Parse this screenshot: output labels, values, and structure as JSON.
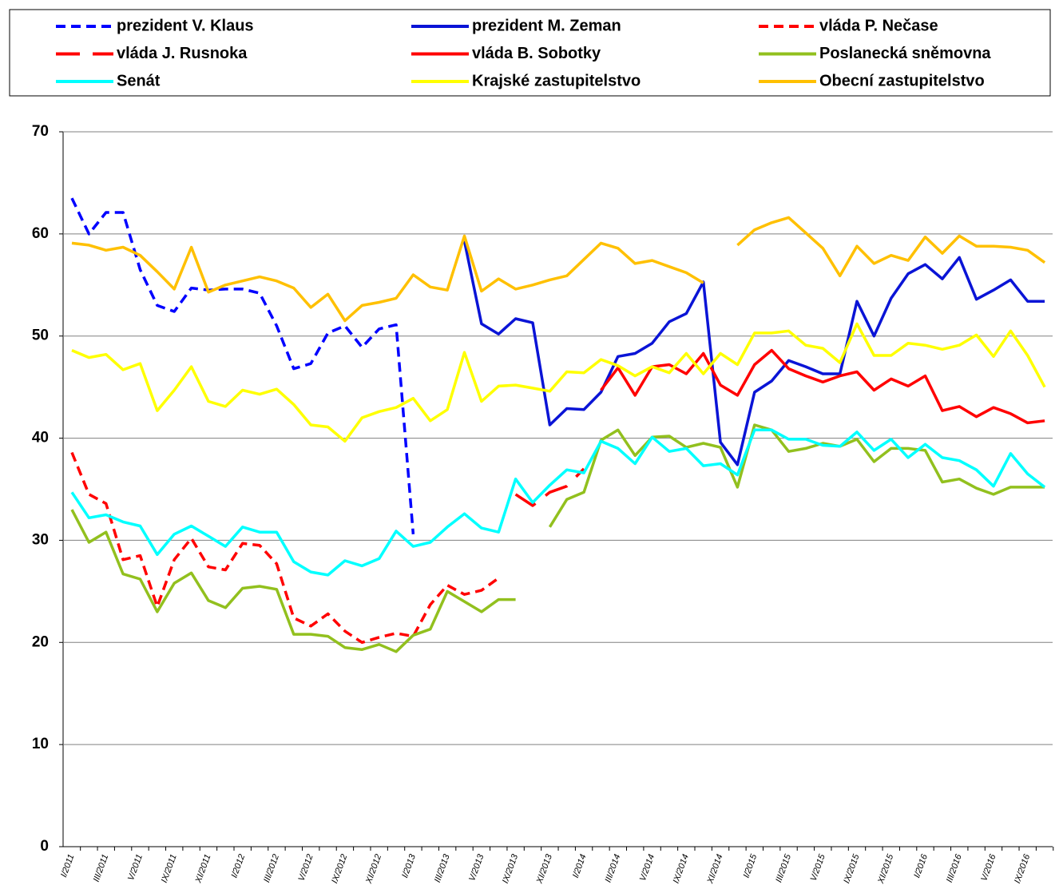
{
  "chart_data": {
    "type": "line",
    "categories": [
      "I/2011",
      null,
      "III/2011",
      null,
      "V/2011",
      null,
      "IX/2011",
      null,
      "XI/2011",
      null,
      "I/2012",
      null,
      "III/2012",
      null,
      "V/2012",
      null,
      "IX/2012",
      null,
      "XI/2012",
      null,
      "I/2013",
      null,
      "III/2013",
      null,
      "V/2013",
      null,
      "IX/2013",
      null,
      "XI/2013",
      null,
      "I/2014",
      null,
      "III/2014",
      null,
      "V/2014",
      null,
      "IX/2014",
      null,
      "XI/2014",
      null,
      "I/2015",
      null,
      "III/2015",
      null,
      "V/2015",
      null,
      "IX/2015",
      null,
      "XI/2015",
      null,
      "I/2016",
      null,
      "III/2016",
      null,
      "V/2016",
      null,
      "IX/2016",
      null
    ],
    "ylim": [
      0,
      70
    ],
    "yticks": [
      0,
      10,
      20,
      30,
      40,
      50,
      60,
      70
    ],
    "grid": true,
    "series": [
      {
        "name": "prezident V. Klaus",
        "color": "#0000ff",
        "line_style": "dashed",
        "values": [
          63.5,
          60,
          62.1,
          62.1,
          56.5,
          53,
          52.4,
          54.7,
          54.5,
          54.6,
          54.6,
          54.2,
          51,
          46.8,
          47.3,
          50.3,
          51,
          48.9,
          50.7,
          51.1,
          30.6,
          null,
          null,
          null,
          null,
          null,
          null,
          null,
          null,
          null,
          null,
          null,
          null,
          null,
          null,
          null,
          null,
          null,
          null,
          null,
          null,
          null,
          null,
          null,
          null,
          null,
          null,
          null,
          null,
          null,
          null,
          null,
          null,
          null,
          null,
          null,
          null,
          null
        ]
      },
      {
        "name": "prezident M. Zeman",
        "color": "#0a14d6",
        "line_style": "solid",
        "values": [
          null,
          null,
          null,
          null,
          null,
          null,
          null,
          null,
          null,
          null,
          null,
          null,
          null,
          null,
          null,
          null,
          null,
          null,
          null,
          null,
          null,
          null,
          null,
          59.3,
          51.2,
          50.2,
          51.7,
          51.3,
          41.3,
          42.9,
          42.8,
          44.5,
          48,
          48.3,
          49.3,
          51.4,
          52.2,
          55.3,
          39.6,
          37.4,
          44.5,
          45.6,
          47.6,
          47,
          46.3,
          46.3,
          53.4,
          50,
          53.7,
          56.1,
          57,
          55.6,
          57.7,
          53.6,
          54.5,
          55.5,
          53.4,
          53.4
        ]
      },
      {
        "name": "vláda P. Nečase",
        "color": "#ff0000",
        "line_style": "dashed",
        "values": [
          38.6,
          34.5,
          33.6,
          28.1,
          28.5,
          23.5,
          28.1,
          30.2,
          27.4,
          27.1,
          29.7,
          29.5,
          27.7,
          22.4,
          21.6,
          22.8,
          21.1,
          20,
          20.5,
          20.9,
          20.6,
          23.7,
          25.6,
          24.7,
          25.1,
          26.3,
          null,
          null,
          null,
          null,
          null,
          null,
          null,
          null,
          null,
          null,
          null,
          null,
          null,
          null,
          null,
          null,
          null,
          null,
          null,
          null,
          null,
          null,
          null,
          null,
          null,
          null,
          null,
          null,
          null,
          null,
          null,
          null
        ]
      },
      {
        "name": "vláda J. Rusnoka",
        "color": "#ff0000",
        "line_style": "long-dashed",
        "values": [
          null,
          null,
          null,
          null,
          null,
          null,
          null,
          null,
          null,
          null,
          null,
          null,
          null,
          null,
          null,
          null,
          null,
          null,
          null,
          null,
          null,
          null,
          null,
          null,
          null,
          null,
          34.5,
          33.4,
          34.7,
          35.3,
          37,
          null,
          null,
          null,
          null,
          null,
          null,
          null,
          null,
          null,
          null,
          null,
          null,
          null,
          null,
          null,
          null,
          null,
          null,
          null,
          null,
          null,
          null,
          null,
          null,
          null,
          null,
          null
        ]
      },
      {
        "name": "vláda B. Sobotky",
        "color": "#ff0000",
        "line_style": "solid",
        "values": [
          null,
          null,
          null,
          null,
          null,
          null,
          null,
          null,
          null,
          null,
          null,
          null,
          null,
          null,
          null,
          null,
          null,
          null,
          null,
          null,
          null,
          null,
          null,
          null,
          null,
          null,
          null,
          null,
          null,
          null,
          null,
          44.7,
          46.9,
          44.2,
          47,
          47.2,
          46.3,
          48.3,
          45.2,
          44.2,
          47.2,
          48.6,
          46.8,
          46.1,
          45.5,
          46.1,
          46.5,
          44.7,
          45.8,
          45.1,
          46.1,
          42.7,
          43.1,
          42.1,
          43,
          42.4,
          41.5,
          41.7
        ]
      },
      {
        "name": "Poslanecká sněmovna",
        "color": "#92c01e",
        "line_style": "solid",
        "values": [
          33,
          29.8,
          30.8,
          26.7,
          26.2,
          23,
          25.8,
          26.8,
          24.1,
          23.4,
          25.3,
          25.5,
          25.2,
          20.8,
          20.8,
          20.6,
          19.5,
          19.3,
          19.8,
          19.1,
          20.7,
          21.3,
          25,
          24,
          23,
          24.2,
          24.2,
          null,
          31.3,
          34,
          34.7,
          39.8,
          40.8,
          38.3,
          40.1,
          40.2,
          39.1,
          39.5,
          39.1,
          35.2,
          41.3,
          40.8,
          38.7,
          39,
          39.5,
          39.2,
          39.9,
          37.7,
          39,
          39,
          38.8,
          35.7,
          36,
          35.1,
          34.5,
          35.2,
          35.2,
          35.2
        ]
      },
      {
        "name": "Senát",
        "color": "#00ffff",
        "line_style": "solid",
        "values": [
          34.7,
          32.2,
          32.5,
          31.8,
          31.4,
          28.6,
          30.6,
          31.4,
          30.4,
          29.4,
          31.3,
          30.8,
          30.8,
          27.9,
          26.9,
          26.6,
          28,
          27.5,
          28.2,
          30.9,
          29.4,
          29.8,
          31.3,
          32.6,
          31.2,
          30.8,
          36,
          33.7,
          35.4,
          36.9,
          36.6,
          39.7,
          39,
          37.5,
          40.1,
          38.7,
          39,
          37.3,
          37.5,
          36.4,
          40.8,
          40.8,
          39.9,
          39.9,
          39.3,
          39.2,
          40.6,
          38.8,
          39.9,
          38.1,
          39.4,
          38.1,
          37.8,
          36.9,
          35.3,
          38.5,
          36.5,
          35.2
        ]
      },
      {
        "name": "Krajské zastupitelstvo",
        "color": "#ffff00",
        "line_style": "solid",
        "values": [
          48.6,
          47.9,
          48.2,
          46.7,
          47.3,
          42.7,
          44.7,
          47,
          43.6,
          43.1,
          44.7,
          44.3,
          44.8,
          43.3,
          41.3,
          41.1,
          39.7,
          42,
          42.6,
          43,
          43.9,
          41.7,
          42.8,
          48.4,
          43.6,
          45.1,
          45.2,
          44.9,
          44.6,
          46.5,
          46.4,
          47.7,
          47.1,
          46.1,
          47,
          46.4,
          48.3,
          46.3,
          48.3,
          47.2,
          50.3,
          50.3,
          50.5,
          49.1,
          48.8,
          47.4,
          51.2,
          48.1,
          48.1,
          49.3,
          49.1,
          48.7,
          49.1,
          50.1,
          48,
          50.5,
          48.1,
          45
        ]
      },
      {
        "name": "Obecní zastupitelstvo",
        "color": "#ffc000",
        "line_style": "solid",
        "values": [
          59.1,
          58.9,
          58.4,
          58.7,
          57.9,
          56.3,
          54.6,
          58.7,
          54.3,
          55,
          55.4,
          55.8,
          55.4,
          54.7,
          52.8,
          54.1,
          51.5,
          53,
          53.3,
          53.7,
          56,
          54.8,
          54.5,
          59.8,
          54.4,
          55.6,
          54.6,
          55,
          55.5,
          55.9,
          57.5,
          59.1,
          58.6,
          57.1,
          57.4,
          56.8,
          56.2,
          55.2,
          null,
          58.9,
          60.4,
          61.1,
          61.6,
          60.1,
          58.6,
          55.9,
          58.8,
          57.1,
          57.9,
          57.4,
          59.7,
          58.1,
          59.8,
          58.8,
          58.8,
          58.7,
          58.4,
          57.2
        ]
      }
    ]
  }
}
